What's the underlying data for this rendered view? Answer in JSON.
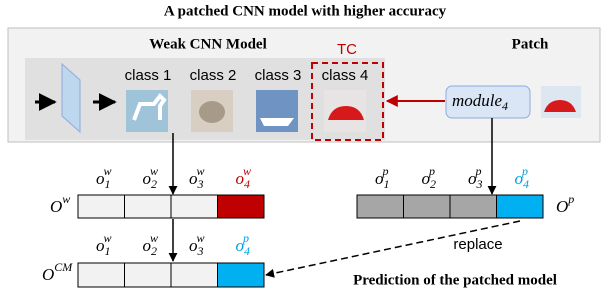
{
  "title": "A patched CNN model with higher accuracy",
  "weak_model": {
    "label": "Weak CNN Model",
    "classes": [
      "class 1",
      "class 2",
      "class 3",
      "class 4"
    ]
  },
  "patch": {
    "label": "Patch",
    "module": {
      "base": "module",
      "sub": "4"
    }
  },
  "tc_label": "TC",
  "outputs": {
    "weak": {
      "label": {
        "base": "O",
        "sup": "w"
      },
      "items": [
        {
          "base": "o",
          "sub": "1",
          "sup": "w"
        },
        {
          "base": "o",
          "sub": "2",
          "sup": "w"
        },
        {
          "base": "o",
          "sub": "3",
          "sup": "w"
        },
        {
          "base": "o",
          "sub": "4",
          "sup": "w"
        }
      ]
    },
    "patch": {
      "label": {
        "base": "O",
        "sup": "p"
      },
      "items": [
        {
          "base": "o",
          "sub": "1",
          "sup": "p"
        },
        {
          "base": "o",
          "sub": "2",
          "sup": "p"
        },
        {
          "base": "o",
          "sub": "3",
          "sup": "p"
        },
        {
          "base": "o",
          "sub": "4",
          "sup": "p"
        }
      ]
    },
    "combined": {
      "label": {
        "base": "O",
        "sup": "CM"
      },
      "items": [
        {
          "base": "o",
          "sub": "1",
          "sup": "w"
        },
        {
          "base": "o",
          "sub": "2",
          "sup": "w"
        },
        {
          "base": "o",
          "sub": "3",
          "sup": "w"
        },
        {
          "base": "o",
          "sub": "4",
          "sup": "p"
        }
      ]
    }
  },
  "replace_label": "replace",
  "prediction_label": "Prediction of the patched model"
}
